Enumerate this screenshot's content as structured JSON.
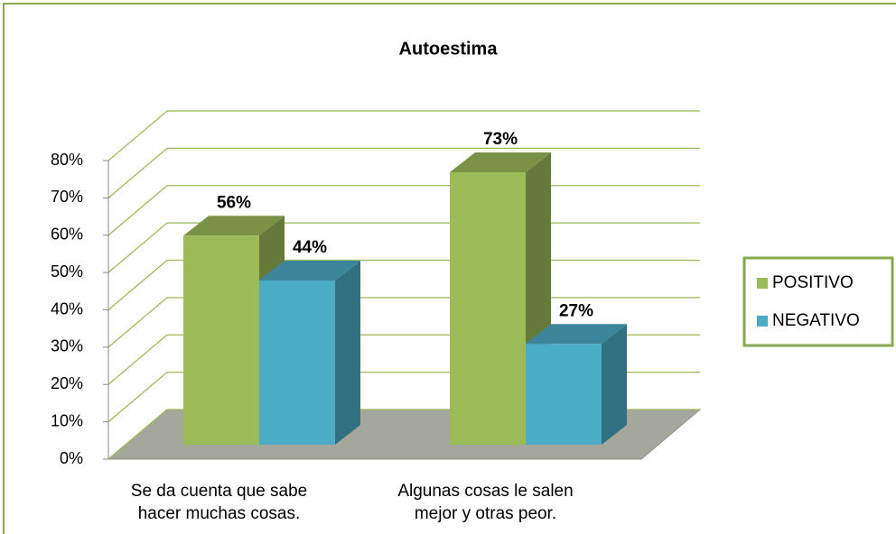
{
  "chart_data": {
    "type": "bar3d",
    "title": "Autoestima",
    "categories": [
      "Se da cuenta que sabe hacer muchas cosas.",
      "Algunas cosas le salen mejor y otras peor."
    ],
    "series": [
      {
        "name": "POSITIVO",
        "color": "#9bbb59",
        "values": [
          56,
          73
        ],
        "value_labels": [
          "56%",
          "73%"
        ]
      },
      {
        "name": "NEGATIVO",
        "color": "#4bacc6",
        "values": [
          44,
          27
        ],
        "value_labels": [
          "44%",
          "27%"
        ]
      }
    ],
    "ylim": [
      0,
      80
    ],
    "yticks": [
      {
        "value": 0,
        "label": "0%"
      },
      {
        "value": 10,
        "label": "10%"
      },
      {
        "value": 20,
        "label": "20%"
      },
      {
        "value": 30,
        "label": "30%"
      },
      {
        "value": 40,
        "label": "40%"
      },
      {
        "value": 50,
        "label": "50%"
      },
      {
        "value": 60,
        "label": "60%"
      },
      {
        "value": 70,
        "label": "70%"
      },
      {
        "value": 80,
        "label": "80%"
      }
    ],
    "grid": true,
    "legend": "right"
  }
}
